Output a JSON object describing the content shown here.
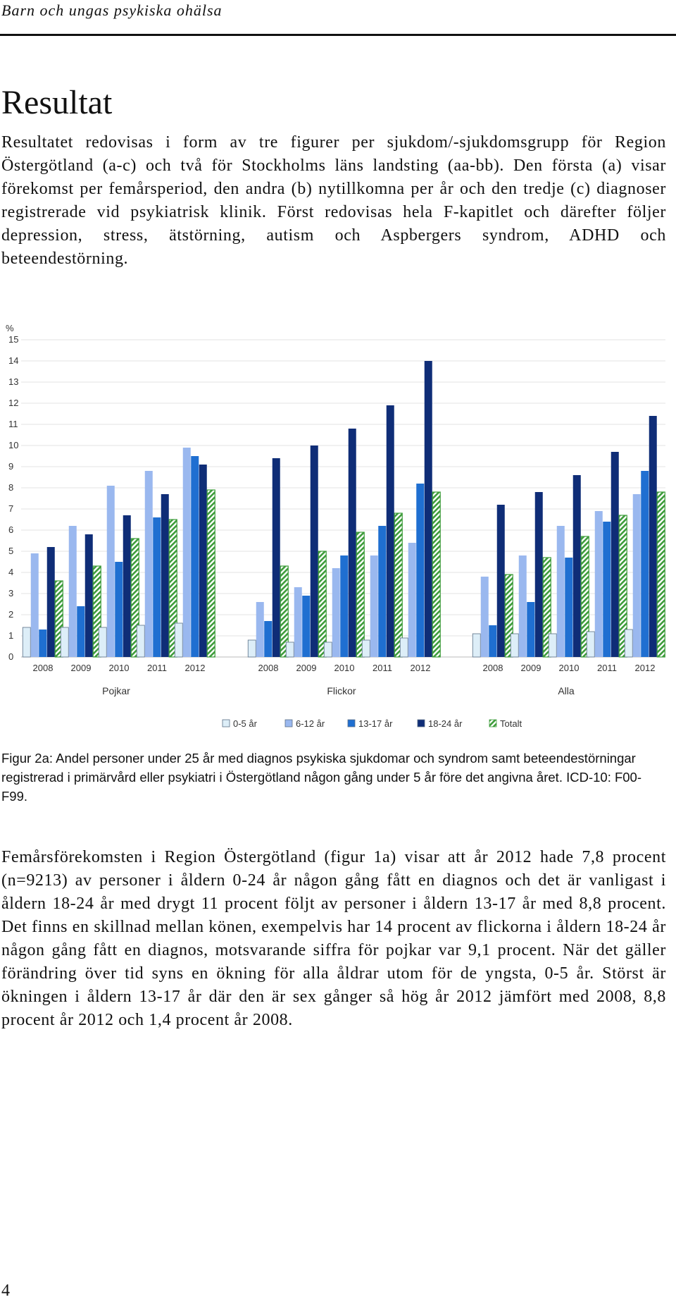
{
  "header": {
    "running_title": "Barn och ungas psykiska ohälsa"
  },
  "section": {
    "title": "Resultat",
    "intro": "Resultatet redovisas i form av tre figurer per sjukdom/-sjukdomsgrupp för Region Östergötland (a-c) och två för Stockholms läns landsting (aa-bb). Den första (a) visar förekomst per femårsperiod, den andra (b) nytillkomna per år och den tredje (c) diagnoser registrerade vid psykiatrisk klinik. Först redovisas hela F-kapitlet och därefter följer depression, stress, ätstörning, autism och Aspbergers syndrom, ADHD och beteendestörning."
  },
  "figure": {
    "caption": "Figur 2a: Andel personer under 25 år med diagnos psykiska sjukdomar och syndrom samt beteendestörningar registrerad i primärvård eller psykiatri i Östergötland någon gång under 5 år före det angivna året. ICD-10: F00-F99."
  },
  "result_text": "Femårsförekomsten i Region Östergötland (figur 1a) visar att år 2012 hade 7,8 procent (n=9213) av personer i åldern 0-24 år någon gång fått en diagnos och det är vanligast i åldern 18-24 år med drygt 11 procent följt av personer i åldern 13-17 år med 8,8 procent. Det finns en skillnad mellan könen, exempelvis har 14 procent av flickorna i åldern 18-24 år någon gång fått en diagnos, motsvarande siffra för pojkar var 9,1 procent. När det gäller förändring över tid syns en ökning för alla åldrar utom för de yngsta, 0-5 år. Störst är ökningen i åldern 13-17 år där den är sex gånger så hög år 2012 jämfört med 2008, 8,8 procent år 2012 och 1,4 procent år 2008.",
  "page_number": "4",
  "chart_data": {
    "type": "bar",
    "ylabel": "%",
    "ylim": [
      0,
      15
    ],
    "yticks": [
      "0",
      "1",
      "2",
      "3",
      "4",
      "5",
      "6",
      "7",
      "8",
      "9",
      "10",
      "11",
      "12",
      "13",
      "14",
      "15"
    ],
    "grid": true,
    "legend_position": "bottom",
    "categories": [
      "2008",
      "2009",
      "2010",
      "2011",
      "2012"
    ],
    "groups": [
      {
        "name": "Pojkar",
        "series": [
          {
            "name": "0-5 år",
            "values": [
              1.4,
              1.4,
              1.4,
              1.5,
              1.6
            ]
          },
          {
            "name": "6-12 år",
            "values": [
              4.9,
              6.2,
              8.1,
              8.8,
              9.9
            ]
          },
          {
            "name": "13-17 år",
            "values": [
              1.3,
              2.4,
              4.5,
              6.6,
              9.5
            ]
          },
          {
            "name": "18-24 år",
            "values": [
              5.2,
              5.8,
              6.7,
              7.7,
              9.1
            ]
          },
          {
            "name": "Totalt",
            "values": [
              3.6,
              4.3,
              5.6,
              6.5,
              7.9
            ]
          }
        ]
      },
      {
        "name": "Flickor",
        "series": [
          {
            "name": "0-5 år",
            "values": [
              0.8,
              0.7,
              0.7,
              0.8,
              0.9
            ]
          },
          {
            "name": "6-12 år",
            "values": [
              2.6,
              3.3,
              4.2,
              4.8,
              5.4
            ]
          },
          {
            "name": "13-17 år",
            "values": [
              1.7,
              2.9,
              4.8,
              6.2,
              8.2
            ]
          },
          {
            "name": "18-24 år",
            "values": [
              9.4,
              10.0,
              10.8,
              11.9,
              14.0
            ]
          },
          {
            "name": "Totalt",
            "values": [
              4.3,
              5.0,
              5.9,
              6.8,
              7.8
            ]
          }
        ]
      },
      {
        "name": "Alla",
        "series": [
          {
            "name": "0-5 år",
            "values": [
              1.1,
              1.1,
              1.1,
              1.2,
              1.3
            ]
          },
          {
            "name": "6-12 år",
            "values": [
              3.8,
              4.8,
              6.2,
              6.9,
              7.7
            ]
          },
          {
            "name": "13-17 år",
            "values": [
              1.5,
              2.6,
              4.7,
              6.4,
              8.8
            ]
          },
          {
            "name": "18-24 år",
            "values": [
              7.2,
              7.8,
              8.6,
              9.7,
              11.4
            ]
          },
          {
            "name": "Totalt",
            "values": [
              3.9,
              4.7,
              5.7,
              6.7,
              7.8
            ]
          }
        ]
      }
    ],
    "colors": {
      "0-5 år": "#ddeef8",
      "6-12 år": "#9ab8ef",
      "13-17 år": "#1f6fd1",
      "18-24 år": "#0f2d77",
      "Totalt": "#3d9c3a"
    }
  }
}
